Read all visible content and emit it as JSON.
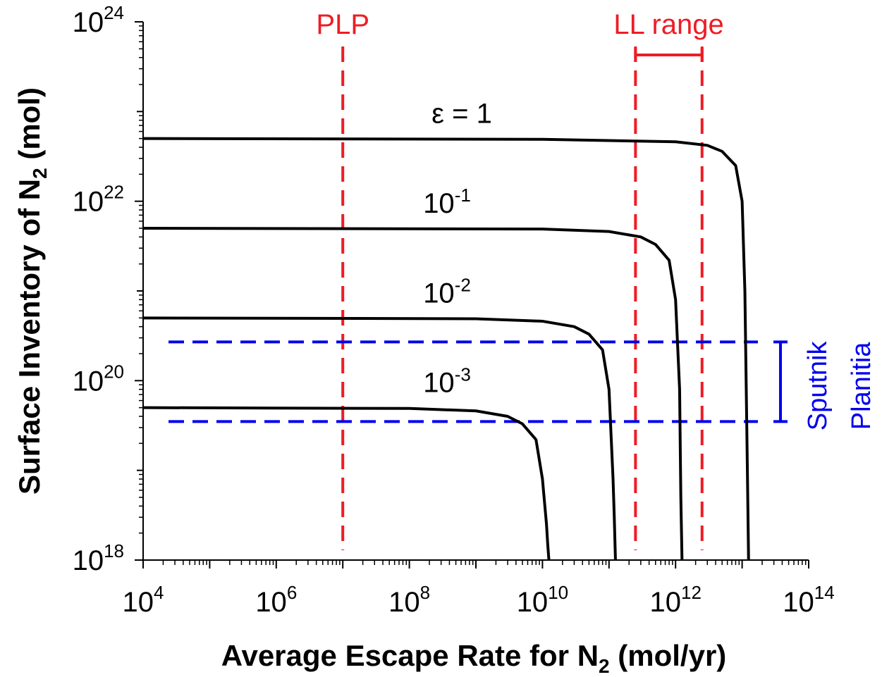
{
  "chart_data": {
    "type": "line",
    "xscale": "log",
    "yscale": "log",
    "xlim": [
      10000.0,
      100000000000000.0
    ],
    "ylim": [
      1e+18,
      1e+24
    ],
    "xlabel": "Average Escape Rate for N2 (mol/yr)",
    "xlabel_parts": {
      "pre": "Average Escape Rate for N",
      "sub": "2",
      "post": " (mol/yr)"
    },
    "ylabel": "Surface Inventory of N2 (mol)",
    "ylabel_parts": {
      "pre": "Surface Inventory of N",
      "sub": "2",
      "post": " (mol)"
    },
    "x_ticks": [
      {
        "value": 10000.0,
        "base": "10",
        "exp": "4"
      },
      {
        "value": 1000000.0,
        "base": "10",
        "exp": "6"
      },
      {
        "value": 100000000.0,
        "base": "10",
        "exp": "8"
      },
      {
        "value": 10000000000.0,
        "base": "10",
        "exp": "10"
      },
      {
        "value": 1000000000000.0,
        "base": "10",
        "exp": "12"
      },
      {
        "value": 100000000000000.0,
        "base": "10",
        "exp": "14"
      }
    ],
    "y_ticks": [
      {
        "value": 1e+18,
        "base": "10",
        "exp": "18"
      },
      {
        "value": 1e+20,
        "base": "10",
        "exp": "20"
      },
      {
        "value": 1e+22,
        "base": "10",
        "exp": "22"
      },
      {
        "value": 1e+24,
        "base": "10",
        "exp": "24"
      }
    ],
    "series": [
      {
        "label": {
          "base": "ε = 1",
          "exp": ""
        },
        "plateau": 5e+22,
        "x": [
          10000.0,
          10000000000.0,
          1000000000000.0,
          3000000000000.0,
          5000000000000.0,
          8000000000000.0,
          10000000000000.0,
          11000000000000.0,
          12000000000000.0,
          12500000000000.0
        ],
        "y": [
          5e+22,
          4.9e+22,
          4.6e+22,
          4.2e+22,
          3.6e+22,
          2.5e+22,
          1e+22,
          1e+21,
          1e+19,
          1e+18
        ],
        "color": "#000000"
      },
      {
        "label": {
          "base": "10",
          "exp": "-1"
        },
        "plateau": 5e+21,
        "x": [
          10000.0,
          10000000000.0,
          100000000000.0,
          300000000000.0,
          500000000000.0,
          800000000000.0,
          1000000000000.0,
          1150000000000.0,
          1200000000000.0,
          1250000000000.0
        ],
        "y": [
          5e+21,
          4.9e+21,
          4.6e+21,
          4e+21,
          3.3e+21,
          2.2e+21,
          8e+20,
          8e+19,
          5e+18,
          1e+18
        ],
        "color": "#000000"
      },
      {
        "label": {
          "base": "10",
          "exp": "-2"
        },
        "plateau": 5e+20,
        "x": [
          10000.0,
          1000000000.0,
          10000000000.0,
          30000000000.0,
          50000000000.0,
          80000000000.0,
          100000000000.0,
          115000000000.0,
          120000000000.0,
          125000000000.0
        ],
        "y": [
          5e+20,
          4.9e+20,
          4.6e+20,
          4e+20,
          3.3e+20,
          2.2e+20,
          8e+19,
          8e+18,
          3e+18,
          1e+18
        ],
        "color": "#000000"
      },
      {
        "label": {
          "base": "10",
          "exp": "-3"
        },
        "plateau": 5e+19,
        "x": [
          10000.0,
          100000000.0,
          1000000000.0,
          3000000000.0,
          5000000000.0,
          8000000000.0,
          10000000000.0,
          11500000000.0,
          12000000000.0,
          12500000000.0
        ],
        "y": [
          5e+19,
          4.9e+19,
          4.6e+19,
          4e+19,
          3.3e+19,
          2.2e+19,
          8e+18,
          2.5e+18,
          1.5e+18,
          1e+18
        ],
        "color": "#000000"
      }
    ],
    "vertical_lines": [
      {
        "x": 10000000.0,
        "color": "#ee1c24",
        "dashed": true
      },
      {
        "x": 250000000000.0,
        "color": "#ee1c24",
        "dashed": true
      },
      {
        "x": 2500000000000.0,
        "color": "#ee1c24",
        "dashed": true
      }
    ],
    "horizontal_lines": [
      {
        "y": 2.7e+20,
        "color": "#0000ee",
        "dashed": true
      },
      {
        "y": 3.5e+19,
        "color": "#0000ee",
        "dashed": true
      }
    ],
    "annotations": {
      "plp": {
        "text": "PLP",
        "color": "#ee1c24"
      },
      "ll_range": {
        "text": "LL range",
        "color": "#ee1c24",
        "x_from": 250000000000.0,
        "x_to": 2500000000000.0,
        "y": 3e+23
      },
      "sputnik_planitia": {
        "lines": [
          "Sputnik",
          "Planitia"
        ],
        "color": "#0000ee",
        "y_from": 3.5e+19,
        "y_to": 2.7e+20,
        "x": 25000000000000.0
      }
    },
    "grid": false,
    "legend": "none"
  }
}
